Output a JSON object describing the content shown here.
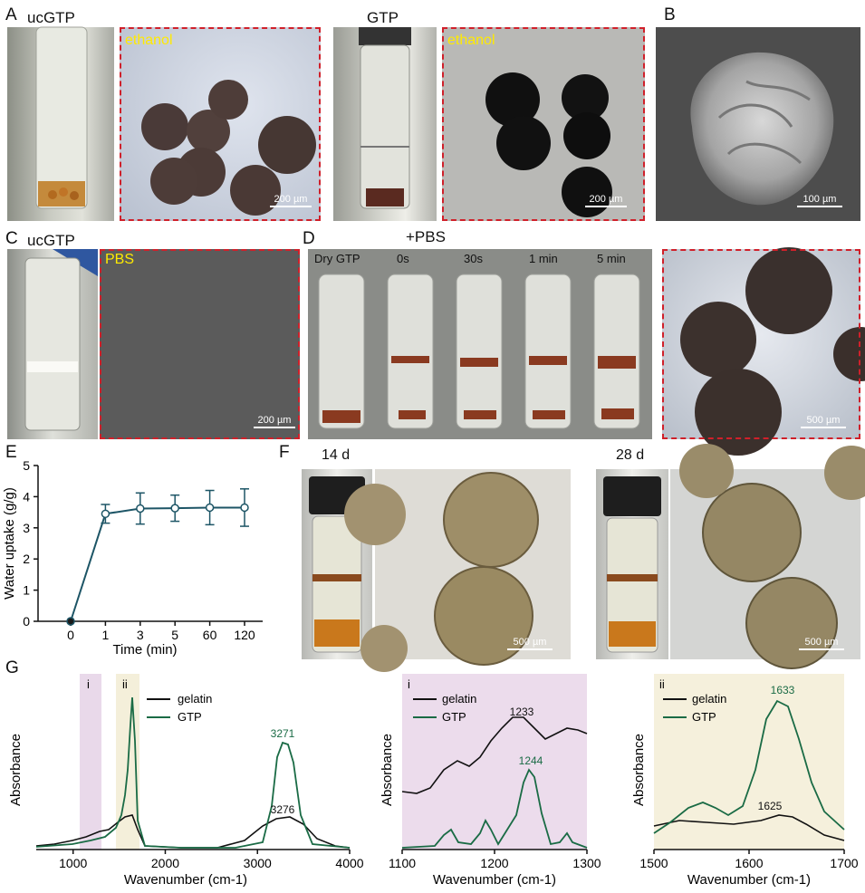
{
  "panels": {
    "A": "A",
    "B": "B",
    "C": "C",
    "D": "D",
    "E": "E",
    "F": "F",
    "G": "G"
  },
  "panelA": {
    "tube1_label": "ucGTP",
    "tube2_label": "GTP",
    "medium1": "ethanol",
    "medium2": "ethanol",
    "scale1": "200 µm",
    "scale2": "200 µm"
  },
  "panelB": {
    "scale": "100 µm"
  },
  "panelC": {
    "tube_label": "ucGTP",
    "medium": "PBS",
    "scale": "200 µm"
  },
  "panelD": {
    "header": "+PBS",
    "vials": [
      "Dry GTP",
      "0s",
      "30s",
      "1 min",
      "5 min"
    ],
    "scale": "500 µm"
  },
  "panelF": {
    "time1": "14 d",
    "time2": "28 d",
    "scale1": "500 µm",
    "scale2": "500 µm"
  },
  "colors": {
    "gelatin": "#111111",
    "GTP": "#1a6b45",
    "dash": "#d0202a",
    "errorbar": "#1d5566"
  },
  "chart_data": [
    {
      "type": "line",
      "title": "",
      "xlabel": "Time (min)",
      "ylabel": "Water uptake (g/g)",
      "categories": [
        "0",
        "1",
        "3",
        "5",
        "60",
        "120"
      ],
      "values": [
        0,
        3.45,
        3.62,
        3.63,
        3.65,
        3.65
      ],
      "errors": [
        0,
        0.3,
        0.5,
        0.42,
        0.55,
        0.6
      ],
      "ylim": [
        0,
        5
      ],
      "yticks": [
        "0",
        "1",
        "2",
        "3",
        "4",
        "5"
      ]
    },
    {
      "type": "line",
      "xlabel": "Wavenumber (cm-1)",
      "ylabel": "Absorbance",
      "xlim": [
        600,
        4000
      ],
      "xticks": [
        "1000",
        "2000",
        "3000",
        "4000"
      ],
      "regions": [
        "i",
        "ii"
      ],
      "series": [
        {
          "name": "gelatin",
          "peak_labels": [
            "3276"
          ]
        },
        {
          "name": "GTP",
          "peak_labels": [
            "3271"
          ]
        }
      ]
    },
    {
      "type": "line",
      "xlabel": "Wavenumber (cm-1)",
      "ylabel": "Absorbance",
      "xlim": [
        1100,
        1300
      ],
      "xticks": [
        "1100",
        "1200",
        "1300"
      ],
      "region": "i",
      "series": [
        {
          "name": "gelatin",
          "peak_labels": [
            "1233"
          ]
        },
        {
          "name": "GTP",
          "peak_labels": [
            "1244"
          ]
        }
      ]
    },
    {
      "type": "line",
      "xlabel": "Wavenumber (cm-1)",
      "ylabel": "Absorbance",
      "xlim": [
        1500,
        1700
      ],
      "xticks": [
        "1500",
        "1600",
        "1700"
      ],
      "region": "ii",
      "series": [
        {
          "name": "gelatin",
          "peak_labels": [
            "1625"
          ]
        },
        {
          "name": "GTP",
          "peak_labels": [
            "1633"
          ]
        }
      ]
    }
  ]
}
